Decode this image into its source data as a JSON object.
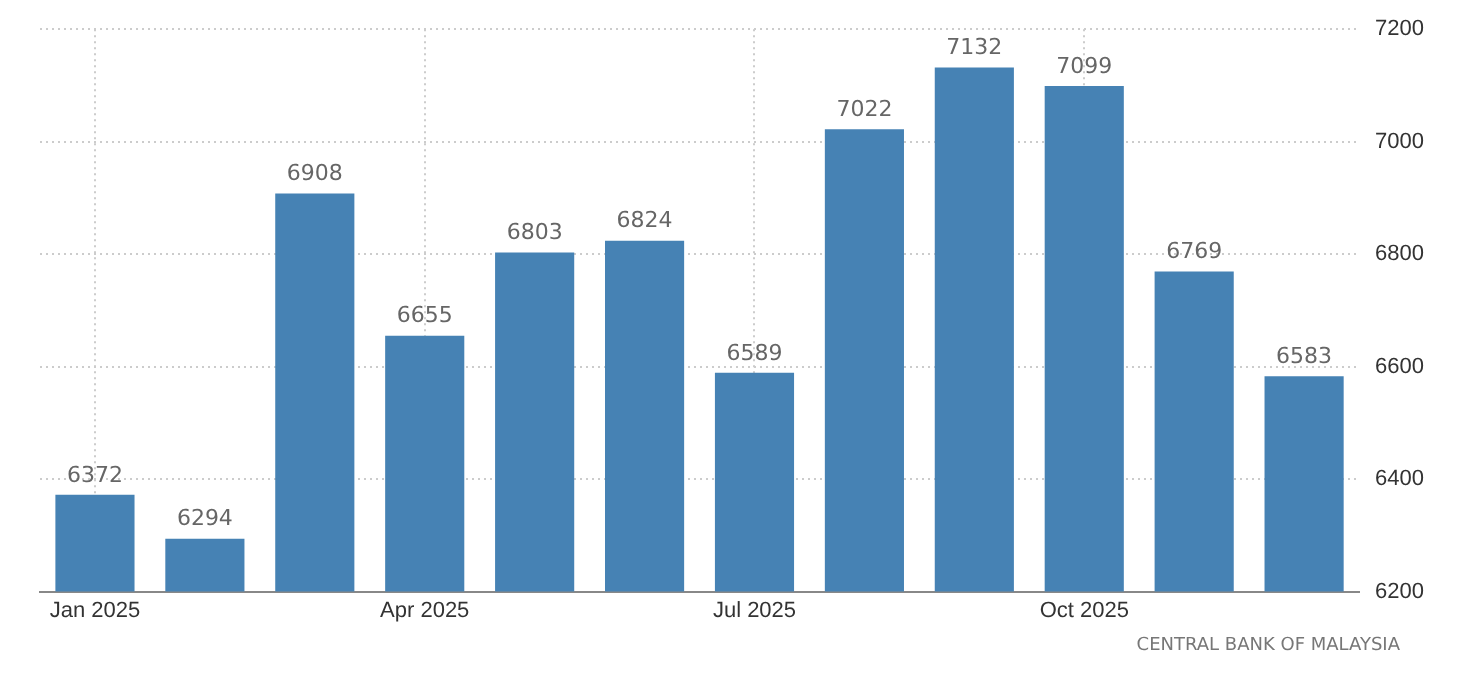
{
  "chart_data": {
    "type": "bar",
    "categories": [
      "Jan 2025",
      null,
      null,
      "Apr 2025",
      null,
      null,
      "Jul 2025",
      null,
      null,
      "Oct 2025",
      null,
      null
    ],
    "values": [
      6372,
      6294,
      6908,
      6655,
      6803,
      6824,
      6589,
      7022,
      7132,
      7099,
      6769,
      6583
    ],
    "color": "#4682b4",
    "ylim": [
      6200,
      7200
    ],
    "yticks": [
      6200,
      6400,
      6600,
      6800,
      7000,
      7200
    ],
    "grid": true,
    "legend": false,
    "data_labels": true,
    "annotations": [
      "CENTRAL BANK OF MALAYSIA"
    ]
  }
}
